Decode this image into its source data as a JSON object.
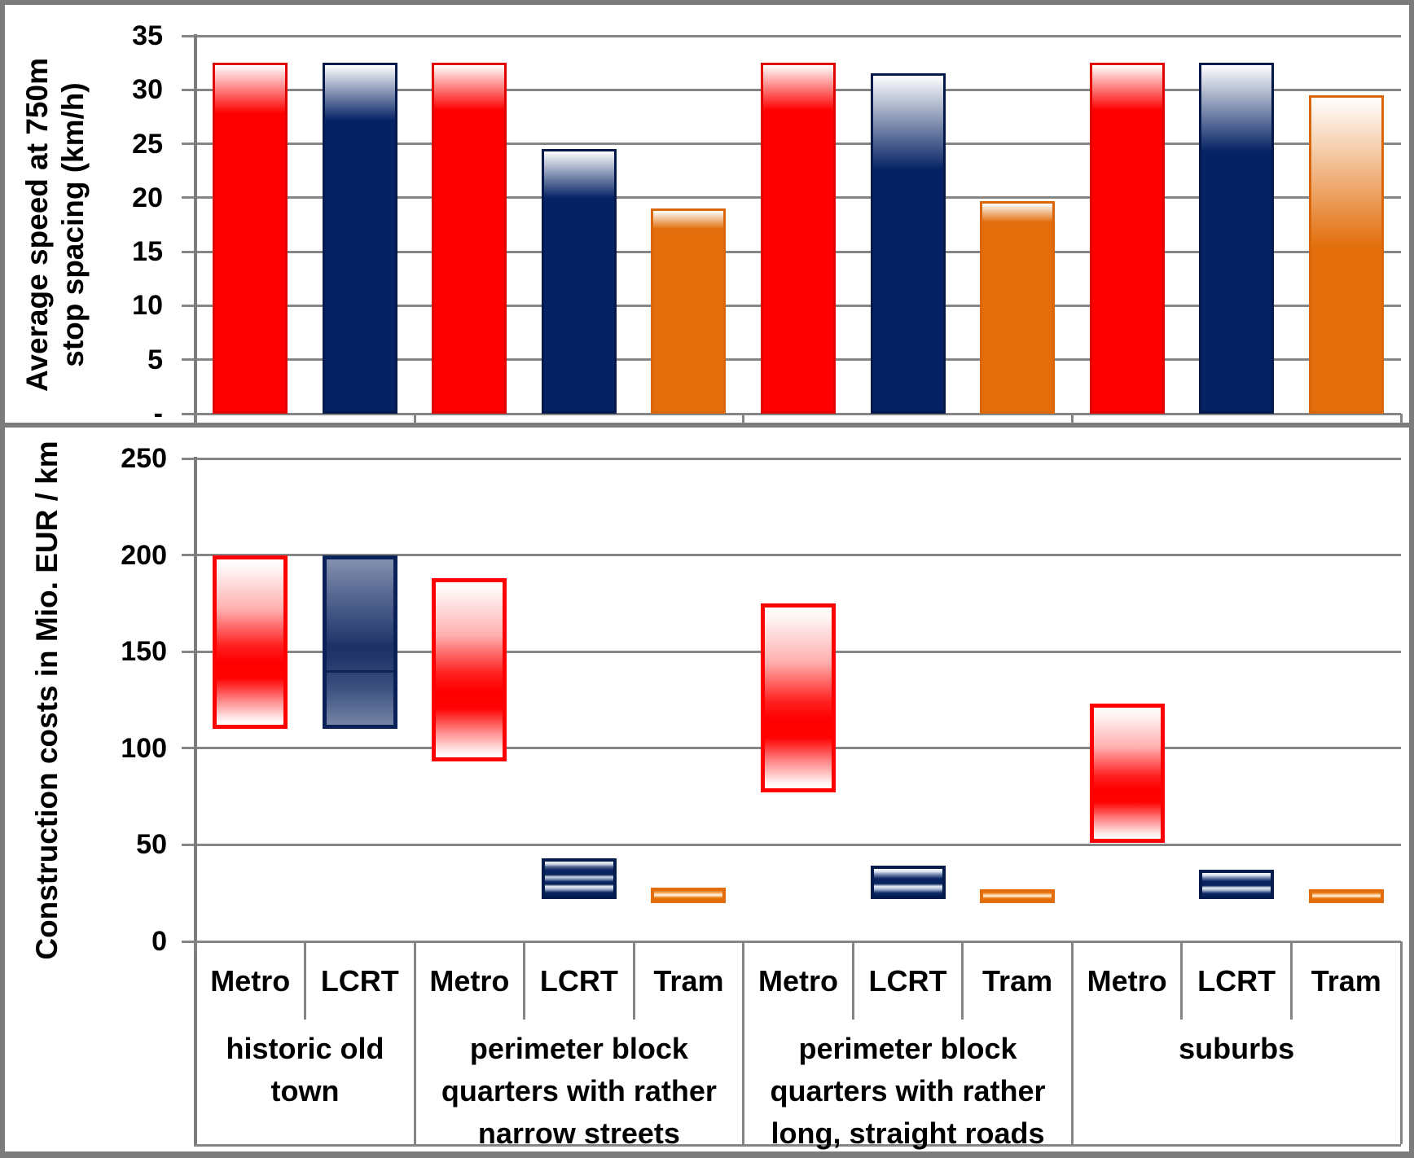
{
  "palette": {
    "metro_red": "#fe0000",
    "metro_red_border": "#e00000",
    "lcrt_navy": "#052264",
    "lcrt_navy_border": "#02194a",
    "tram_orange": "#e26d0a",
    "tram_orange_border": "#d96708",
    "grid_gray": "#858585",
    "border_gray": "#7c7c7c",
    "text_black": "#000000"
  },
  "groups": [
    {
      "label_lines": [
        "historic old",
        "town"
      ],
      "start": 0,
      "end": 2
    },
    {
      "label_lines": [
        "perimeter block",
        "quarters with rather",
        "narrow streets"
      ],
      "start": 2,
      "end": 5
    },
    {
      "label_lines": [
        "perimeter block",
        "quarters with rather",
        "long, straight roads"
      ],
      "start": 5,
      "end": 8
    },
    {
      "label_lines": [
        "suburbs"
      ],
      "start": 8,
      "end": 11
    }
  ],
  "column_labels": [
    "Metro",
    "LCRT",
    "Metro",
    "LCRT",
    "Tram",
    "Metro",
    "LCRT",
    "Tram",
    "Metro",
    "LCRT",
    "Tram"
  ],
  "chart_data": [
    {
      "id": "speed",
      "type": "bar",
      "title": "",
      "ylabel_lines": [
        "Average speed at 750m",
        "stop spacing (km/h)"
      ],
      "ylim": [
        0,
        35
      ],
      "ytick_step": 5,
      "ytick_labels_top_to_bottom": [
        "35",
        "30",
        "25",
        "20",
        "15",
        "10",
        "5",
        "-"
      ],
      "grid": true,
      "legend": "none",
      "series": [
        {
          "group": "historic old town",
          "mode": "Metro",
          "value": 32.5,
          "color_key": "metro_red",
          "gloss": 14
        },
        {
          "group": "historic old town",
          "mode": "LCRT",
          "value": 32.5,
          "color_key": "lcrt_navy",
          "gloss": 16
        },
        {
          "group": "perimeter block quarters with rather narrow streets",
          "mode": "Metro",
          "value": 32.5,
          "color_key": "metro_red",
          "gloss": 13
        },
        {
          "group": "perimeter block quarters with rather narrow streets",
          "mode": "LCRT",
          "value": 24.5,
          "color_key": "lcrt_navy",
          "gloss": 18
        },
        {
          "group": "perimeter block quarters with rather narrow streets",
          "mode": "Tram",
          "value": 19,
          "color_key": "tram_orange",
          "gloss": 9
        },
        {
          "group": "perimeter block quarters with rather long, straight roads",
          "mode": "Metro",
          "value": 32.5,
          "color_key": "metro_red",
          "gloss": 13
        },
        {
          "group": "perimeter block quarters with rather long, straight roads",
          "mode": "LCRT",
          "value": 31.5,
          "color_key": "lcrt_navy",
          "gloss": 28
        },
        {
          "group": "perimeter block quarters with rather long, straight roads",
          "mode": "Tram",
          "value": 19.7,
          "color_key": "tram_orange",
          "gloss": 9
        },
        {
          "group": "suburbs",
          "mode": "Metro",
          "value": 32.5,
          "color_key": "metro_red",
          "gloss": 13
        },
        {
          "group": "suburbs",
          "mode": "LCRT",
          "value": 32.5,
          "color_key": "lcrt_navy",
          "gloss": 25
        },
        {
          "group": "suburbs",
          "mode": "Tram",
          "value": 29.5,
          "color_key": "tram_orange",
          "gloss": 48
        }
      ]
    },
    {
      "id": "cost",
      "type": "floating-bar",
      "title": "",
      "ylabel_lines": [
        "Construction costs in Mio. EUR / km"
      ],
      "ylim": [
        0,
        250
      ],
      "ytick_step": 50,
      "ytick_labels_top_to_bottom": [
        "250",
        "200",
        "150",
        "100",
        "50",
        "0"
      ],
      "grid": true,
      "legend": "none",
      "series": [
        {
          "group": "historic old town",
          "mode": "Metro",
          "low": 110,
          "high": 200,
          "variant": "v-metro-range"
        },
        {
          "group": "historic old town",
          "mode": "LCRT",
          "low": 110,
          "high": 200,
          "divider": 140,
          "variant": "v-lcrt-range"
        },
        {
          "group": "perimeter block quarters with rather narrow streets",
          "mode": "Metro",
          "low": 93,
          "high": 188,
          "variant": "v-metro-range"
        },
        {
          "group": "perimeter block quarters with rather narrow streets",
          "mode": "LCRT",
          "low": 22,
          "high": 43,
          "variant": "v-lcrt-stripes3"
        },
        {
          "group": "perimeter block quarters with rather narrow streets",
          "mode": "Tram",
          "low": 20,
          "high": 28,
          "variant": "v-tram-pill"
        },
        {
          "group": "perimeter block quarters with rather long, straight roads",
          "mode": "Metro",
          "low": 77,
          "high": 175,
          "variant": "v-metro-range"
        },
        {
          "group": "perimeter block quarters with rather long, straight roads",
          "mode": "LCRT",
          "low": 22,
          "high": 39,
          "variant": "v-lcrt-stripes2"
        },
        {
          "group": "perimeter block quarters with rather long, straight roads",
          "mode": "Tram",
          "low": 20,
          "high": 27,
          "variant": "v-tram-pill"
        },
        {
          "group": "suburbs",
          "mode": "Metro",
          "low": 51,
          "high": 123,
          "variant": "v-metro-range"
        },
        {
          "group": "suburbs",
          "mode": "LCRT",
          "low": 22,
          "high": 37,
          "variant": "v-lcrt-stripes2"
        },
        {
          "group": "suburbs",
          "mode": "Tram",
          "low": 20,
          "high": 27,
          "variant": "v-tram-pill"
        }
      ]
    }
  ]
}
